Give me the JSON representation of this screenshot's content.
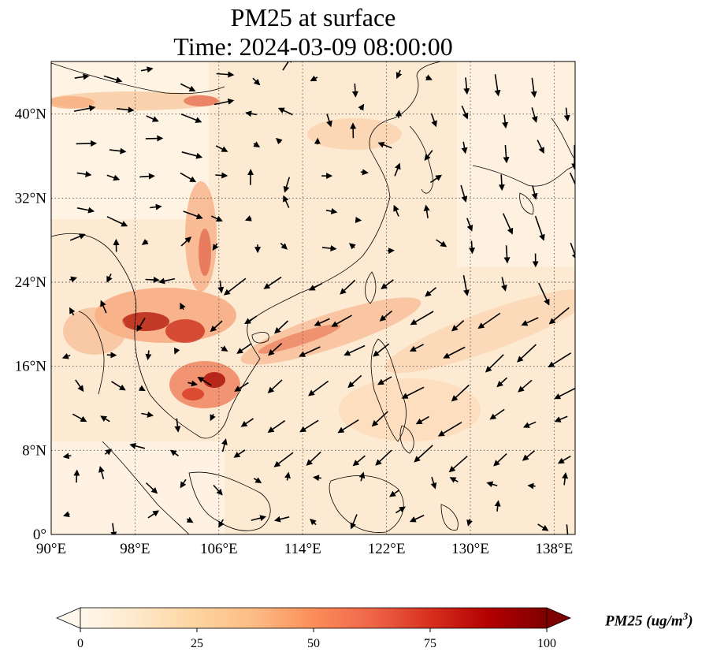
{
  "title": {
    "line1": "PM25 at surface",
    "line2": "Time: 2024-03-09 08:00:00"
  },
  "map": {
    "lon_range": [
      90,
      140
    ],
    "lat_range": [
      0,
      45
    ],
    "x_ticks": [
      "90°E",
      "98°E",
      "106°E",
      "114°E",
      "122°E",
      "130°E",
      "138°E"
    ],
    "x_tick_values": [
      90,
      98,
      106,
      114,
      122,
      130,
      138
    ],
    "y_ticks": [
      "0°",
      "8°N",
      "16°N",
      "24°N",
      "32°N",
      "40°N"
    ],
    "y_tick_values": [
      0,
      8,
      16,
      24,
      32,
      40
    ],
    "gridlines": "dotted",
    "field": "PM25",
    "overlay": "wind vectors"
  },
  "colorbar": {
    "label": "PM25 (ug/m",
    "label_exp": "3",
    "label_close": ")",
    "min": 0,
    "max": 100,
    "ticks": [
      "0",
      "25",
      "50",
      "75",
      "100"
    ],
    "tick_values": [
      0,
      25,
      50,
      75,
      100
    ],
    "colormap": "OrRd",
    "extend": "both",
    "colors": [
      "#fff7ec",
      "#fee8c8",
      "#fdd49e",
      "#fdbb84",
      "#fc8d59",
      "#ef6548",
      "#d7301f",
      "#b30000",
      "#7f0000"
    ]
  }
}
